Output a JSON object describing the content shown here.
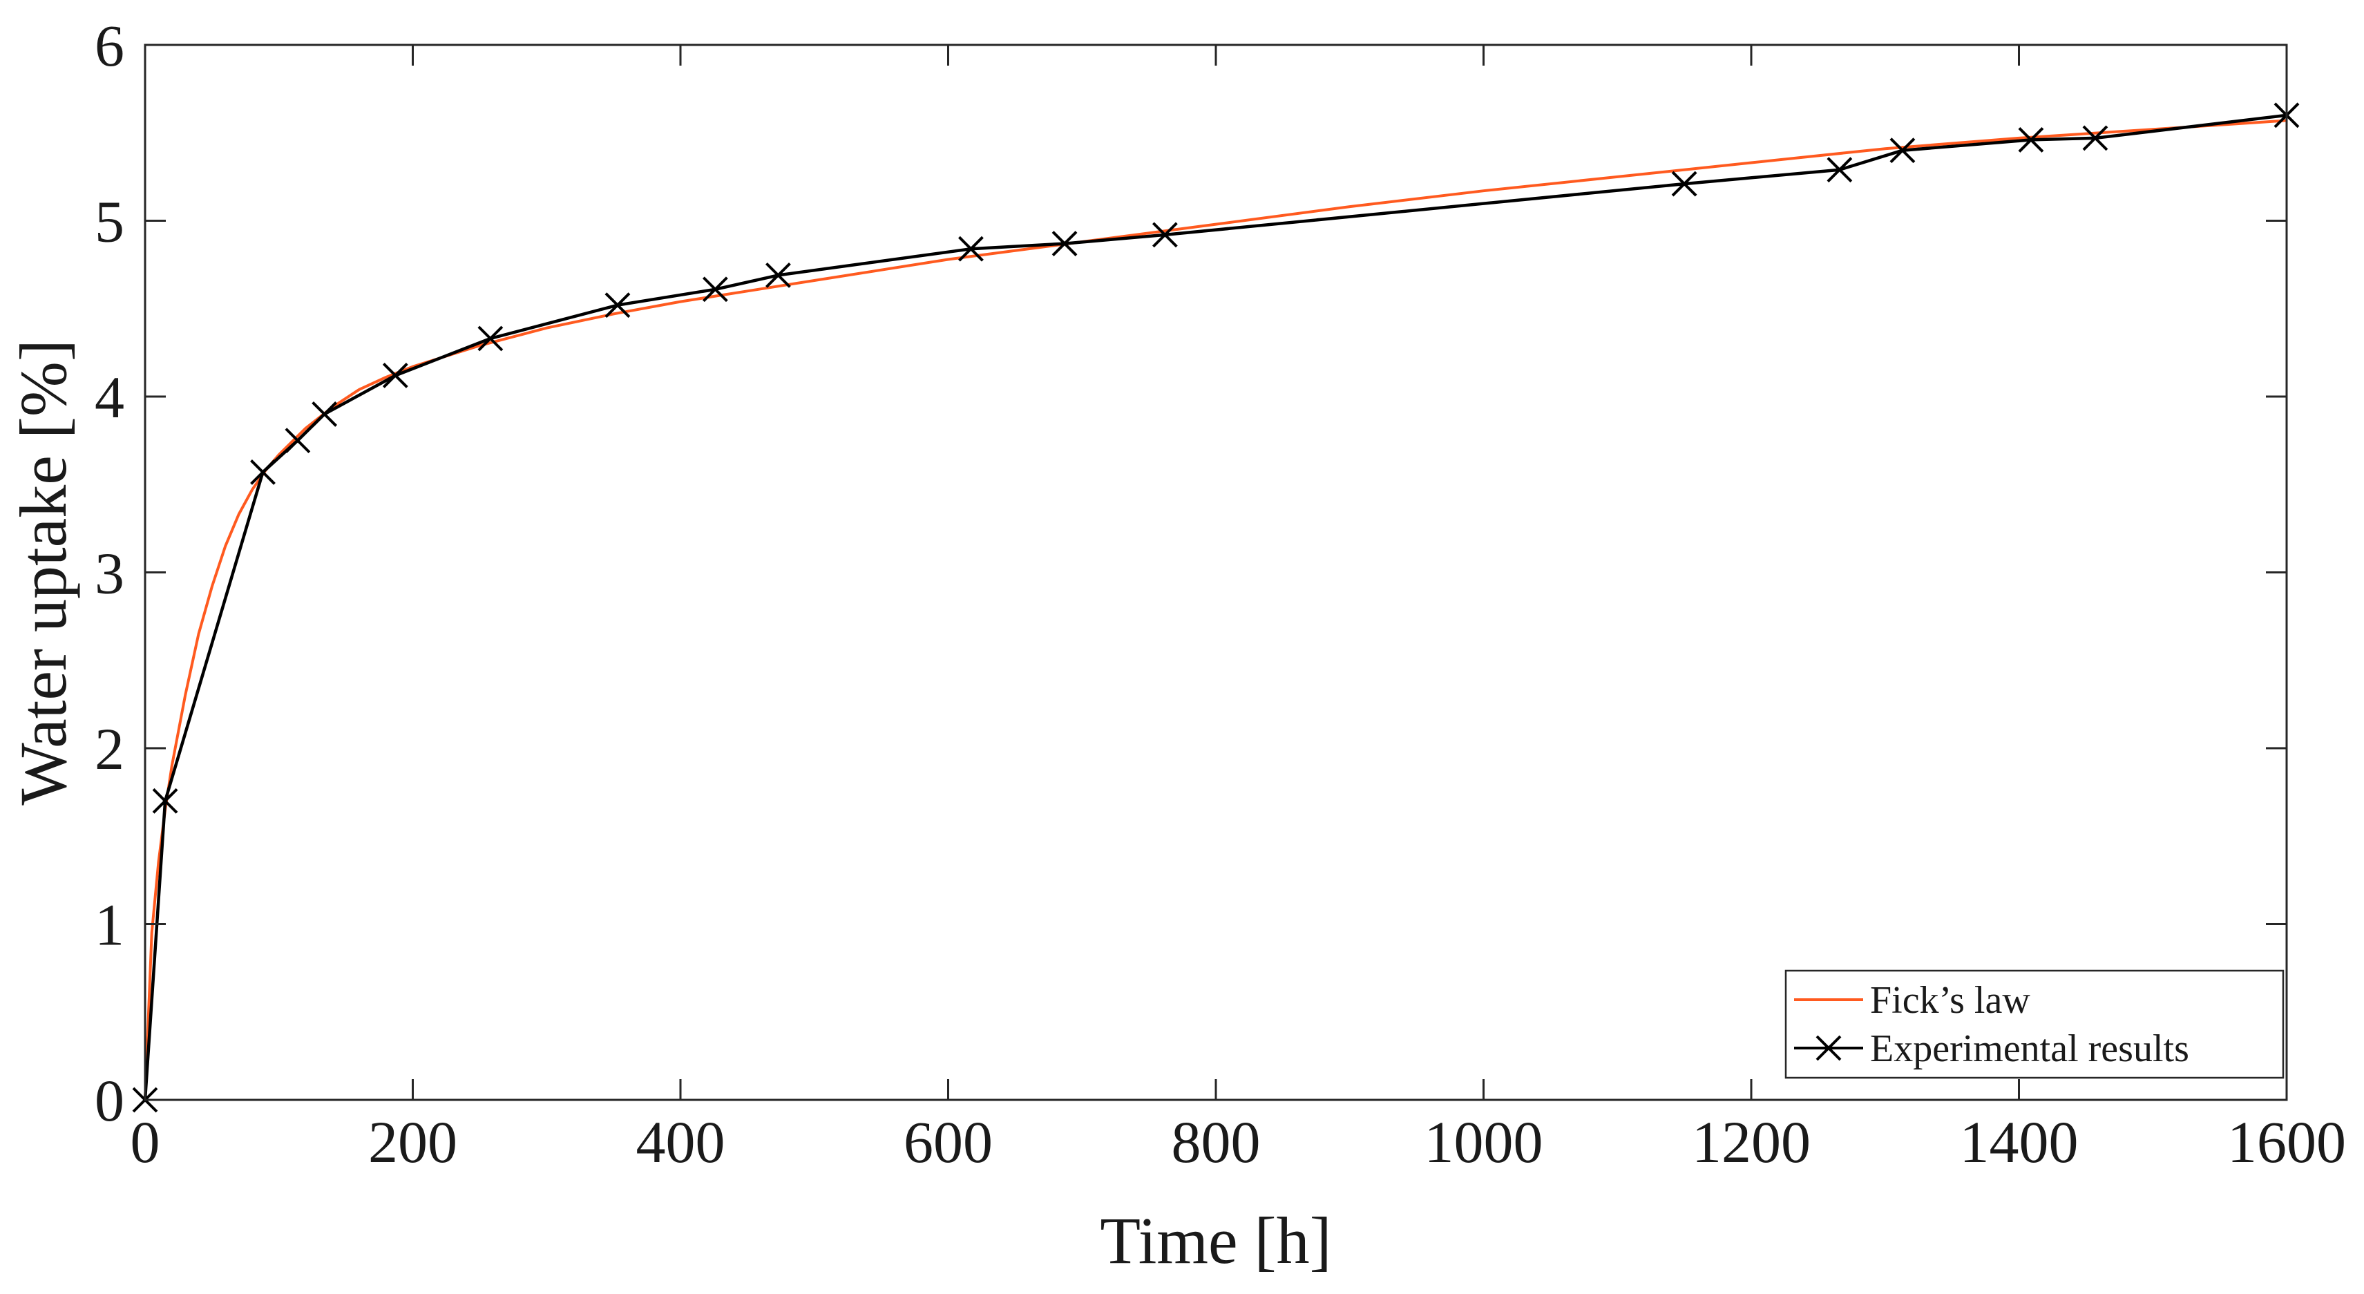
{
  "chart_data": {
    "type": "line",
    "title": "",
    "xlabel": "Time [h]",
    "ylabel": "Water uptake [%]",
    "xlim": [
      0,
      1600
    ],
    "ylim": [
      0,
      6
    ],
    "xticks": [
      0,
      200,
      400,
      600,
      800,
      1000,
      1200,
      1400,
      1600
    ],
    "yticks": [
      0,
      1,
      2,
      3,
      4,
      5,
      6
    ],
    "grid": false,
    "legend_position": "bottom-right",
    "series": [
      {
        "name": "Fick’s law",
        "color": "#ff5a1f",
        "marker": "none",
        "x": [
          0,
          5,
          10,
          15,
          20,
          30,
          40,
          50,
          60,
          70,
          80,
          90,
          100,
          120,
          140,
          160,
          180,
          200,
          250,
          300,
          350,
          400,
          450,
          500,
          600,
          700,
          800,
          900,
          1000,
          1100,
          1200,
          1300,
          1400,
          1500,
          1600
        ],
        "y": [
          0,
          0.95,
          1.35,
          1.65,
          1.9,
          2.3,
          2.65,
          2.92,
          3.15,
          3.33,
          3.47,
          3.58,
          3.67,
          3.82,
          3.94,
          4.04,
          4.11,
          4.17,
          4.29,
          4.39,
          4.47,
          4.54,
          4.6,
          4.66,
          4.78,
          4.88,
          4.98,
          5.08,
          5.17,
          5.25,
          5.33,
          5.41,
          5.47,
          5.52,
          5.57
        ]
      },
      {
        "name": "Experimental results",
        "color": "#000000",
        "marker": "x",
        "x": [
          0,
          15,
          88,
          114,
          134,
          187,
          258,
          353,
          426,
          473,
          617,
          687,
          762,
          1150,
          1266,
          1313,
          1409,
          1457,
          1600
        ],
        "y": [
          0,
          1.7,
          3.57,
          3.75,
          3.9,
          4.12,
          4.33,
          4.52,
          4.61,
          4.69,
          4.84,
          4.87,
          4.92,
          5.21,
          5.29,
          5.4,
          5.46,
          5.47,
          5.6
        ]
      }
    ]
  }
}
